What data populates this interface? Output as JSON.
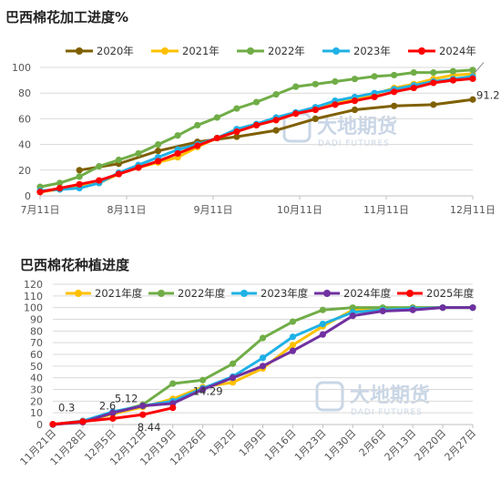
{
  "watermark": {
    "brand": "大地期货",
    "brand_en": "DADI FUTURES"
  },
  "chart_data": [
    {
      "type": "line",
      "title": "巴西棉花加工进度%",
      "x_tick_labels": [
        "7月11日",
        "8月11日",
        "9月11日",
        "10月11日",
        "11月11日",
        "12月11日"
      ],
      "y_ticks": [
        0,
        20,
        40,
        60,
        80,
        100
      ],
      "ylim": [
        0,
        100
      ],
      "grid": true,
      "legend_position": "top",
      "series": [
        {
          "name": "2020年",
          "color": "#7f6000",
          "x": [
            2,
            4,
            6,
            8,
            10,
            12,
            14,
            16,
            18,
            20,
            22
          ],
          "values": [
            20,
            25,
            35,
            42,
            46,
            51,
            60,
            67,
            70,
            71,
            75
          ]
        },
        {
          "name": "2021年",
          "color": "#ffc000",
          "x": [
            0,
            1,
            2,
            3,
            4,
            5,
            6,
            7,
            8,
            9,
            10,
            11,
            12,
            13,
            14,
            15,
            16,
            17,
            18,
            19,
            20,
            21,
            22
          ],
          "values": [
            3,
            5,
            8,
            10,
            17,
            22,
            26,
            30,
            38,
            45,
            50,
            55,
            59,
            64,
            68,
            72,
            76,
            79,
            84,
            87,
            91,
            94,
            95
          ]
        },
        {
          "name": "2022年",
          "color": "#70ad47",
          "x": [
            0,
            1,
            2,
            3,
            4,
            5,
            6,
            7,
            8,
            9,
            10,
            11,
            12,
            13,
            14,
            15,
            16,
            17,
            18,
            19,
            20,
            21,
            22
          ],
          "values": [
            7,
            10,
            15,
            23,
            28,
            33,
            40,
            47,
            55,
            61,
            68,
            73,
            79,
            85,
            87,
            89,
            91,
            93,
            94,
            96,
            96,
            97,
            98
          ]
        },
        {
          "name": "2023年",
          "color": "#1fb1e6",
          "x": [
            0,
            1,
            2,
            3,
            4,
            5,
            6,
            7,
            8,
            9,
            10,
            11,
            12,
            13,
            14,
            15,
            16,
            17,
            18,
            19,
            20,
            21,
            22
          ],
          "values": [
            4,
            5,
            6,
            10,
            18,
            24,
            30,
            36,
            40,
            45,
            52,
            56,
            61,
            65,
            69,
            74,
            77,
            80,
            83,
            86,
            89,
            91,
            93
          ]
        },
        {
          "name": "2024年",
          "color": "#ff0000",
          "x": [
            0,
            1,
            2,
            3,
            4,
            5,
            6,
            7,
            8,
            9,
            10,
            11,
            12,
            13,
            14,
            15,
            16,
            17,
            18,
            19,
            20,
            21,
            22
          ],
          "values": [
            3,
            6,
            9,
            12,
            17,
            22,
            27,
            33,
            39,
            45,
            50,
            55,
            59,
            64,
            67,
            71,
            74,
            77,
            81,
            84,
            88,
            90,
            91.2
          ]
        }
      ],
      "annotations": [
        {
          "series": "2024年",
          "text": "91.2"
        }
      ]
    },
    {
      "type": "line",
      "title": "巴西棉花种植进度",
      "x_tick_labels": [
        "11月21日",
        "11月28日",
        "12月5日",
        "12月12日",
        "12月19日",
        "12月26日",
        "1月2日",
        "1月9日",
        "1月16日",
        "1月23日",
        "1月30日",
        "2月6日",
        "2月13日",
        "2月20日",
        "2月27日"
      ],
      "y_ticks": [
        0,
        10,
        20,
        30,
        40,
        50,
        60,
        70,
        80,
        90,
        100,
        110,
        120
      ],
      "ylim": [
        0,
        120
      ],
      "grid": true,
      "legend_position": "top",
      "series": [
        {
          "name": "2021年度",
          "color": "#ffc000",
          "x": [
            0,
            1,
            2,
            3,
            4,
            5,
            6,
            7,
            8,
            9,
            10,
            11,
            12,
            13,
            14
          ],
          "values": [
            0,
            2,
            9,
            15,
            22,
            32,
            36,
            48,
            68,
            84,
            98,
            99,
            100,
            100,
            100
          ]
        },
        {
          "name": "2022年度",
          "color": "#70ad47",
          "x": [
            0,
            1,
            2,
            3,
            4,
            5,
            6,
            7,
            8,
            9,
            10,
            11,
            12,
            13,
            14
          ],
          "values": [
            0,
            3,
            10,
            17,
            35,
            38,
            52,
            74,
            88,
            98,
            100,
            100,
            100,
            100,
            100
          ]
        },
        {
          "name": "2023年度",
          "color": "#1fb1e6",
          "x": [
            0,
            1,
            2,
            3,
            4,
            5,
            6,
            7,
            8,
            9,
            10,
            11,
            12,
            13,
            14
          ],
          "values": [
            0,
            3,
            11,
            16,
            20,
            31,
            41,
            57,
            75,
            86,
            96,
            98,
            99,
            100,
            100
          ]
        },
        {
          "name": "2024年度",
          "color": "#7030a0",
          "x": [
            0,
            1,
            2,
            3,
            4,
            5,
            6,
            7,
            8,
            9,
            10,
            11,
            12,
            13,
            14
          ],
          "values": [
            0,
            2,
            10,
            16,
            18,
            30,
            40,
            50,
            63,
            77,
            93,
            97,
            98,
            100,
            100
          ]
        },
        {
          "name": "2025年度",
          "color": "#ff0000",
          "x": [
            0,
            1,
            2,
            3,
            4
          ],
          "values": [
            0.3,
            2.6,
            5.12,
            8.44,
            14.29
          ]
        }
      ],
      "annotations": [
        {
          "series": "2025年度",
          "index": 0,
          "text": "0.3"
        },
        {
          "series": "2025年度",
          "index": 1,
          "text": "2.6"
        },
        {
          "series": "2025年度",
          "index": 2,
          "text": "5.12"
        },
        {
          "series": "2025年度",
          "index": 3,
          "text": "8.44"
        },
        {
          "series": "2025年度",
          "index": 4,
          "text": "14.29"
        }
      ]
    }
  ]
}
